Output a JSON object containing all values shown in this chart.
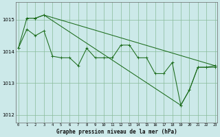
{
  "title": "Graphe pression niveau de la mer (hPa)",
  "bg_color": "#cce9e9",
  "grid_color": "#88bb99",
  "line_color": "#1a6b1a",
  "xlim": [
    -0.3,
    23.3
  ],
  "ylim": [
    1011.75,
    1015.55
  ],
  "yticks": [
    1012,
    1013,
    1014,
    1015
  ],
  "xtick_labels": [
    "0",
    "1",
    "2",
    "3",
    "4",
    "5",
    "6",
    "7",
    "8",
    "9",
    "10",
    "11",
    "12",
    "13",
    "14",
    "15",
    "16",
    "17",
    "18",
    "19",
    "20",
    "21",
    "22",
    "23"
  ],
  "series_upper": {
    "x": [
      1,
      2,
      3,
      23
    ],
    "y": [
      1015.05,
      1015.05,
      1015.15,
      1013.55
    ]
  },
  "series_main": {
    "x": [
      0,
      1,
      2,
      3,
      4,
      5,
      6,
      7,
      8,
      9,
      10,
      11,
      12,
      13,
      14,
      15,
      16,
      17,
      18,
      19,
      20,
      21,
      22,
      23
    ],
    "y": [
      1014.1,
      1014.7,
      1014.5,
      1014.65,
      1013.85,
      1013.8,
      1013.8,
      1013.55,
      1014.1,
      1013.8,
      1013.8,
      1013.8,
      1014.2,
      1014.2,
      1013.8,
      1013.8,
      1013.3,
      1013.3,
      1013.65,
      1012.3,
      1012.78,
      1013.5,
      1013.5,
      1013.5
    ]
  },
  "series_lower": {
    "x": [
      0,
      1,
      2,
      3,
      19,
      20,
      21,
      22,
      23
    ],
    "y": [
      1014.1,
      1015.05,
      1015.05,
      1015.15,
      1012.3,
      1012.78,
      1013.5,
      1013.5,
      1013.55
    ]
  }
}
